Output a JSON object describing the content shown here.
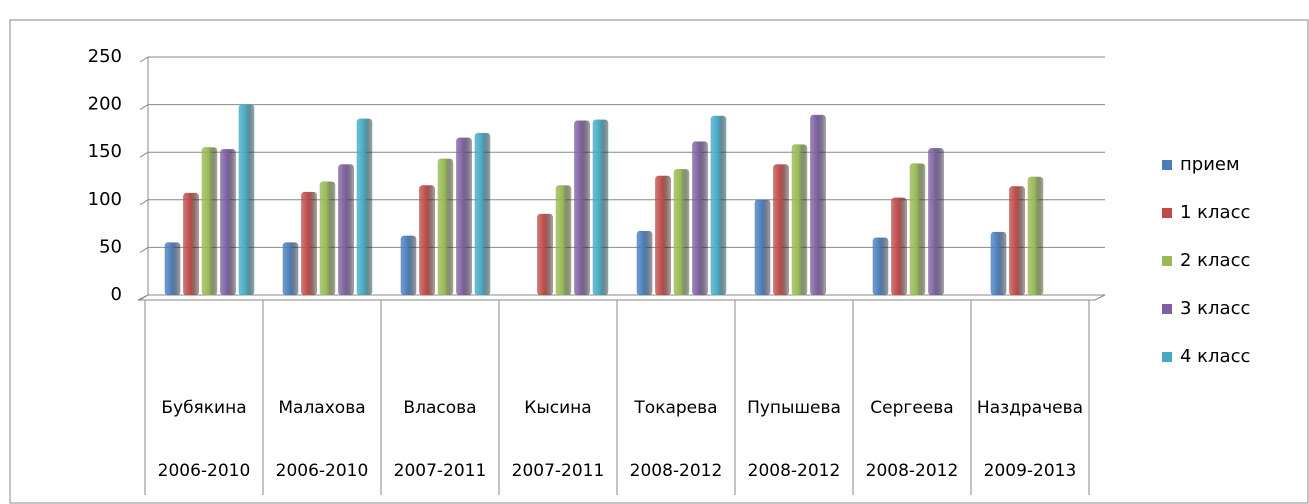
{
  "chart_data": {
    "type": "bar",
    "categories": [
      [
        "Бубякина",
        "2006-2010"
      ],
      [
        "Малахова",
        "2006-2010"
      ],
      [
        "Власова",
        "2007-2011"
      ],
      [
        "Кысина",
        "2007-2011"
      ],
      [
        "Токарева",
        "2008-2012"
      ],
      [
        "Пупышева",
        "2008-2012"
      ],
      [
        "Сергеева",
        "2008-2012"
      ],
      [
        "Наздрачева",
        "2009-2013"
      ]
    ],
    "series": [
      {
        "name": "прием",
        "color": "#4a7ebb",
        "values": [
          55,
          55,
          62,
          null,
          67,
          100,
          60,
          66
        ]
      },
      {
        "name": "1 класс",
        "color": "#be4b48",
        "values": [
          107,
          108,
          115,
          85,
          125,
          137,
          102,
          114
        ]
      },
      {
        "name": "2 класс",
        "color": "#98b954",
        "values": [
          155,
          119,
          143,
          115,
          132,
          158,
          138,
          124
        ]
      },
      {
        "name": "3 класс",
        "color": "#7d60a0",
        "values": [
          153,
          137,
          165,
          183,
          161,
          189,
          154,
          null
        ]
      },
      {
        "name": "4 класс",
        "color": "#46aac5",
        "values": [
          200,
          185,
          170,
          184,
          188,
          null,
          null,
          null
        ]
      }
    ],
    "ylim": [
      0,
      250
    ],
    "yticks": [
      0,
      50,
      100,
      150,
      200,
      250
    ],
    "grid": true,
    "legend": "right"
  }
}
